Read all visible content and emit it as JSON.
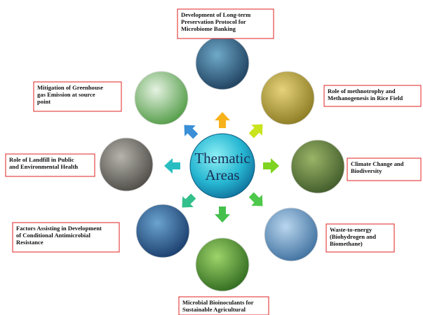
{
  "center": {
    "lines": [
      "Thematic",
      "Areas"
    ]
  },
  "nodes": [
    {
      "lines": [
        "Development of Long-term",
        "Preservation Protocol for",
        "Microbiome Banking"
      ]
    },
    {
      "lines": [
        "Role of methnotrophy and",
        "Methanogenesis in Rice Field"
      ]
    },
    {
      "lines": [
        "Climate Change and",
        "Biodiversity"
      ]
    },
    {
      "lines": [
        "Waste-to-energy",
        "(Biohydrogen and",
        "Biomethane)"
      ]
    },
    {
      "lines": [
        "Microbial Bioinoculants for",
        "Sustainable Agricultural"
      ]
    },
    {
      "lines": [
        "Factors Assisting in Development",
        "of Conditional Antimicrobial",
        "Resistance"
      ]
    },
    {
      "lines": [
        "Role of Landfill in Public",
        "and Environmental Health"
      ]
    },
    {
      "lines": [
        "Mitigation of Greenhouse",
        "gas Emission at source",
        "point"
      ]
    }
  ]
}
